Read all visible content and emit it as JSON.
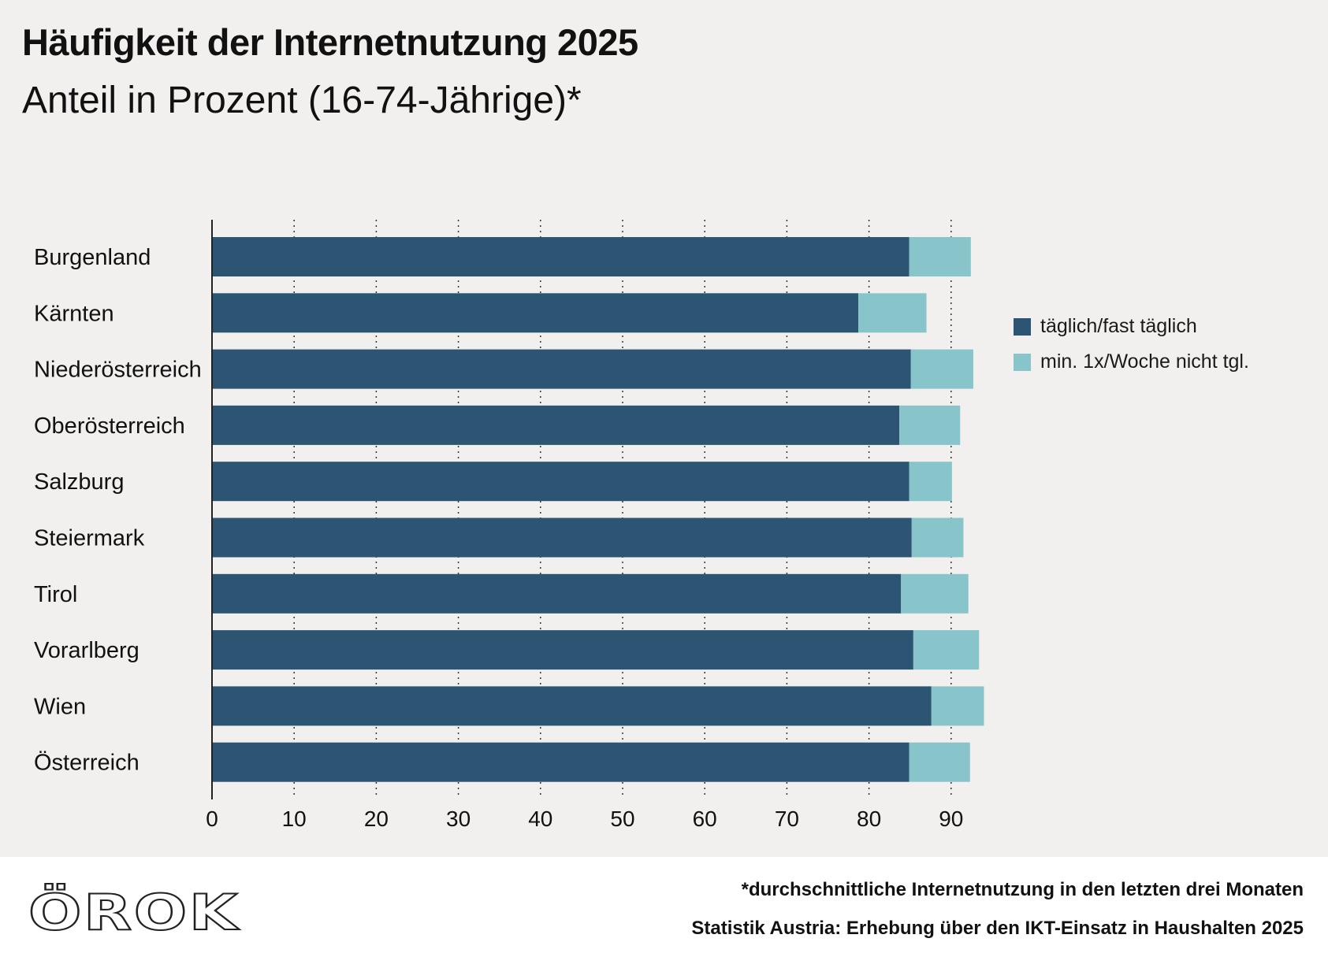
{
  "header": {
    "title": "Häufigkeit der Internetnutzung 2025",
    "subtitle": "Anteil in Prozent (16-74-Jährige)*"
  },
  "colors": {
    "daily": "#2c5573",
    "weekly": "#88c5ca",
    "background": "#f2f0ef"
  },
  "chart_data": {
    "type": "bar",
    "orientation": "horizontal",
    "stacked": true,
    "title": "Häufigkeit der Internetnutzung 2025",
    "subtitle": "Anteil in Prozent (16-74-Jährige)*",
    "categories": [
      "Burgenland",
      "Kärnten",
      "Niederösterreich",
      "Oberösterreich",
      "Salzburg",
      "Steiermark",
      "Tirol",
      "Vorarlberg",
      "Wien",
      "Österreich"
    ],
    "series": [
      {
        "name": "täglich/fast täglich",
        "values": [
          84.9,
          78.7,
          85.1,
          83.7,
          84.9,
          85.2,
          83.9,
          85.4,
          87.6,
          84.9
        ]
      },
      {
        "name": "min. 1x/Woche nicht tgl.",
        "values": [
          7.5,
          8.3,
          7.6,
          7.4,
          5.2,
          6.3,
          8.2,
          8.0,
          6.4,
          7.4
        ]
      }
    ],
    "xlim": [
      0,
      94
    ],
    "xticks": [
      0,
      10,
      20,
      30,
      40,
      50,
      60,
      70,
      80,
      90
    ],
    "grid": "vertical dotted",
    "legend": "right"
  },
  "footer": {
    "footnote": "*durchschnittliche Internetnutzung in den letzten drei Monaten",
    "source": "Statistik Austria: Erhebung über den IKT-Einsatz in Haushalten 2025",
    "logo": "ÖROK"
  }
}
